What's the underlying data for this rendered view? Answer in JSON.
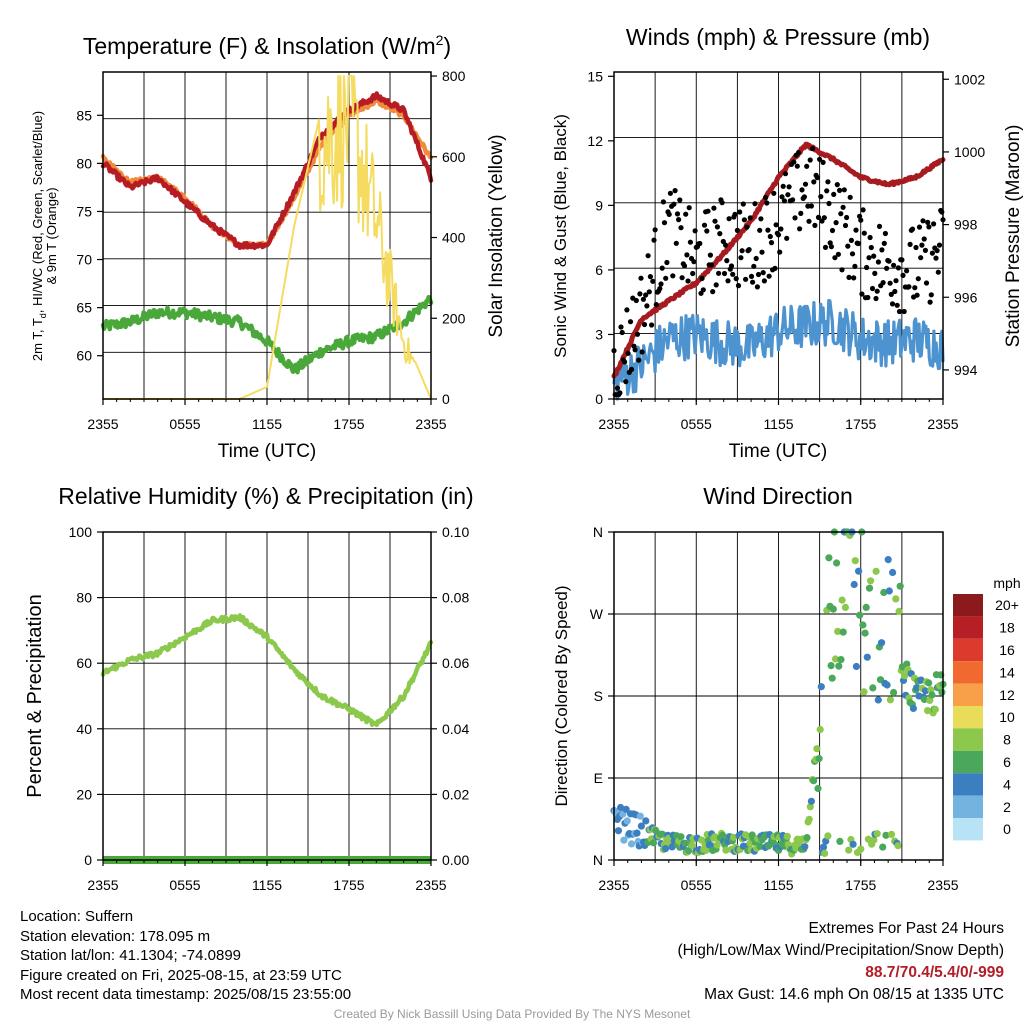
{
  "colors": {
    "red": "#b71c24",
    "green": "#4aa83a",
    "orange": "#f08a3c",
    "maroon": "#a61a20",
    "yellow": "#f5dc60",
    "blue_wind": "#4d93cf",
    "gust": "#000000",
    "rh": "#8cc84b",
    "precip": "#4aa83a"
  },
  "charts": {
    "temp": {
      "title": "Temperature (F) & Insolation (W/m",
      "title_sup": "2",
      "title_end": ")",
      "ylabel_line1": "2m T, T",
      "ylabel_sub": "d",
      "ylabel_line1_end": ", HI/WC (Red, Green, Scarlet/Blue)",
      "ylabel_line2": "& 9m T (Orange)",
      "ylabel_right": "Solar Insolation (Yellow)",
      "xlabel": "Time (UTC)",
      "yticks": [
        "60",
        "65",
        "70",
        "75",
        "80",
        "85"
      ],
      "yticks_right": [
        "0",
        "200",
        "400",
        "600",
        "800"
      ]
    },
    "wind": {
      "title": "Winds (mph) & Pressure (mb)",
      "ylabel": "Sonic Wind & Gust (Blue, Black)",
      "ylabel_right": "Station Pressure (Maroon)",
      "xlabel": "Time (UTC)",
      "yticks": [
        "0",
        "3",
        "6",
        "9",
        "12",
        "15"
      ],
      "yticks_right": [
        "994",
        "996",
        "998",
        "1000",
        "1002"
      ]
    },
    "rh": {
      "title": "Relative Humidity (%) & Precipitation (in)",
      "ylabel": "Percent & Precipitation",
      "yticks": [
        "0",
        "20",
        "40",
        "60",
        "80",
        "100"
      ],
      "yticks_right": [
        "0.00",
        "0.02",
        "0.04",
        "0.06",
        "0.08",
        "0.10"
      ]
    },
    "dir": {
      "title": "Wind Direction",
      "ylabel": "Direction (Colored By Speed)",
      "yticks": [
        "N",
        "E",
        "S",
        "W",
        "N"
      ],
      "colorbar_title": "mph",
      "colorbar_labels": [
        "20+",
        "18",
        "16",
        "14",
        "12",
        "10",
        "8",
        "6",
        "4",
        "2",
        "0"
      ],
      "colorbar_colors": [
        "#8c1a1c",
        "#b81e25",
        "#dc3a2c",
        "#f06a30",
        "#f7a049",
        "#e8dc5a",
        "#8cc84b",
        "#4ba85a",
        "#3b7fc0",
        "#74b2e0",
        "#b8e2f6"
      ]
    }
  },
  "x_ticks": [
    "2355",
    "0555",
    "1155",
    "1755",
    "2355"
  ],
  "chart_data": [
    {
      "type": "line",
      "title": "Temperature (F) & Insolation (W/m2)",
      "xlabel": "Time (UTC)",
      "x": [
        "2355",
        "0155",
        "0355",
        "0555",
        "0755",
        "0955",
        "1155",
        "1355",
        "1555",
        "1755",
        "1955",
        "2155",
        "2355"
      ],
      "ylim": [
        55.5,
        89.5
      ],
      "y2lim": [
        0,
        810
      ],
      "series": [
        {
          "name": "2m T",
          "values": [
            80,
            77.5,
            78.5,
            76,
            73.5,
            71.5,
            71.5,
            77,
            83,
            85.5,
            87,
            85.5,
            78.5
          ]
        },
        {
          "name": "9m T",
          "values": [
            80.5,
            78,
            78.5,
            76.5,
            73.5,
            71.5,
            71.5,
            76.5,
            82,
            85,
            86.5,
            85,
            80.5
          ]
        },
        {
          "name": "Td",
          "values": [
            63,
            63.5,
            64.5,
            64.5,
            64,
            63.5,
            61.5,
            58.5,
            60.5,
            61.5,
            62,
            63.5,
            66
          ]
        },
        {
          "name": "Solar Insolation",
          "values": [
            0,
            0,
            0,
            0,
            0,
            0,
            30,
            430,
            720,
            800,
            500,
            160,
            0
          ]
        }
      ]
    },
    {
      "type": "line",
      "title": "Winds (mph) & Pressure (mb)",
      "xlabel": "Time (UTC)",
      "x": [
        "2355",
        "0155",
        "0355",
        "0555",
        "0755",
        "0955",
        "1155",
        "1355",
        "1555",
        "1755",
        "1955",
        "2155",
        "2355"
      ],
      "ylim": [
        0,
        15.2
      ],
      "y2lim": [
        993.2,
        1002.2
      ],
      "series": [
        {
          "name": "Sonic Wind",
          "values": [
            0.8,
            1.6,
            2.8,
            3.0,
            2.6,
            2.4,
            3.2,
            3.4,
            3.6,
            2.8,
            2.6,
            2.8,
            2.4
          ]
        },
        {
          "name": "Gust",
          "values": [
            1.2,
            4.0,
            8.0,
            6.4,
            7.4,
            7.0,
            8.2,
            10.0,
            8.6,
            6.8,
            6.2,
            6.0,
            7.0
          ]
        },
        {
          "name": "Station Pressure",
          "values": [
            993.8,
            995.4,
            995.9,
            996.4,
            997.2,
            998.1,
            999.3,
            1000.2,
            999.8,
            999.3,
            999.1,
            999.3,
            999.8
          ]
        }
      ]
    },
    {
      "type": "line",
      "title": "Relative Humidity (%) & Precipitation (in)",
      "x": [
        "2355",
        "0155",
        "0355",
        "0555",
        "0755",
        "0955",
        "1155",
        "1355",
        "1555",
        "1755",
        "1955",
        "2155",
        "2355"
      ],
      "ylim": [
        0,
        100
      ],
      "y2lim": [
        0,
        0.1
      ],
      "series": [
        {
          "name": "Relative Humidity",
          "values": [
            57,
            61,
            63,
            68,
            73,
            74,
            68,
            58,
            50,
            46,
            41,
            50,
            66
          ]
        },
        {
          "name": "Precipitation",
          "values": [
            0,
            0,
            0,
            0,
            0,
            0,
            0,
            0,
            0,
            0,
            0,
            0,
            0
          ]
        }
      ]
    },
    {
      "type": "scatter",
      "title": "Wind Direction",
      "x": [
        "2355",
        "0155",
        "0355",
        "0555",
        "0755",
        "0955",
        "1155",
        "1355",
        "1555",
        "1755",
        "1955",
        "2155",
        "2355"
      ],
      "series": [
        {
          "name": "Direction (deg)",
          "values": [
            45,
            30,
            18,
            18,
            20,
            18,
            18,
            15,
            300,
            280,
            250,
            175,
            185
          ]
        }
      ]
    }
  ],
  "footer": {
    "location": "Location: Suffern",
    "elevation": "Station elevation: 178.095 m",
    "latlon": "Station lat/lon: 41.1304; -74.0899",
    "created": "Figure created on Fri, 2025-08-15, at 23:59 UTC",
    "recent": "Most recent data timestamp: 2025/08/15 23:55:00",
    "extremes_title": "Extremes For Past 24 Hours",
    "extremes_subtitle": "(High/Low/Max Wind/Precipitation/Snow Depth)",
    "extremes_values": "88.7/70.4/5.4/0/-999",
    "max_gust": "Max Gust: 14.6 mph On 08/15 at 1335 UTC",
    "credit": "Created By Nick Bassill Using Data Provided By The NYS Mesonet"
  }
}
